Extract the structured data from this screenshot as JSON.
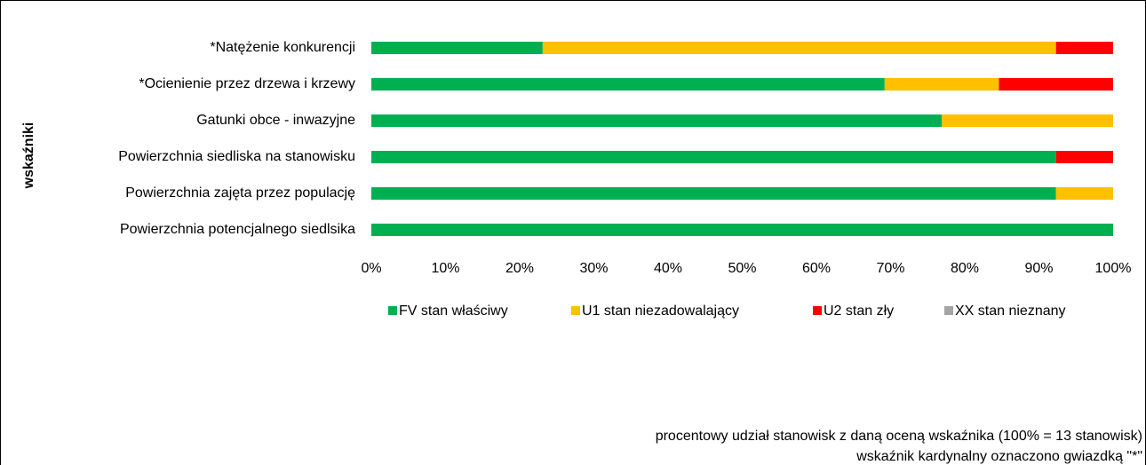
{
  "chart_data": {
    "type": "stacked_barh",
    "y_label": "wskaźniki",
    "categories": [
      "*Natężenie konkurencji",
      "*Ocienienie przez drzewa i krzewy",
      "Gatunki obce - inwazyjne",
      "Powierzchnia siedliska na stanowisku",
      "Powierzchnia zajęta przez populację",
      "Powierzchnia potencjalnego siedlsika"
    ],
    "series": [
      {
        "name": "FV stan właściwy",
        "color": "#00b050",
        "values": [
          23.1,
          69.2,
          76.9,
          92.3,
          92.3,
          100
        ]
      },
      {
        "name": "U1 stan niezadowalający",
        "color": "#ffc000",
        "values": [
          69.2,
          15.4,
          23.1,
          0,
          7.7,
          0
        ]
      },
      {
        "name": "U2 stan zły",
        "color": "#ff0000",
        "values": [
          7.7,
          15.4,
          0,
          7.7,
          0,
          0
        ]
      },
      {
        "name": "XX stan nieznany",
        "color": "#a5a5a5",
        "values": [
          0,
          0,
          0,
          0,
          0,
          0
        ]
      }
    ],
    "xlim": [
      0,
      100
    ],
    "xticks": [
      {
        "value": 0,
        "label": "0%"
      },
      {
        "value": 10,
        "label": "10%"
      },
      {
        "value": 20,
        "label": "20%"
      },
      {
        "value": 30,
        "label": "30%"
      },
      {
        "value": 40,
        "label": "40%"
      },
      {
        "value": 50,
        "label": "50%"
      },
      {
        "value": 60,
        "label": "60%"
      },
      {
        "value": 70,
        "label": "70%"
      },
      {
        "value": 80,
        "label": "80%"
      },
      {
        "value": 90,
        "label": "90%"
      },
      {
        "value": 100,
        "label": "100%"
      }
    ],
    "notes": [
      "procentowy udział stanowisk z daną oceną wskaźnika (100% = 13 stanowisk)",
      "wskaźnik kardynalny oznaczono gwiazdką \"*\""
    ]
  }
}
